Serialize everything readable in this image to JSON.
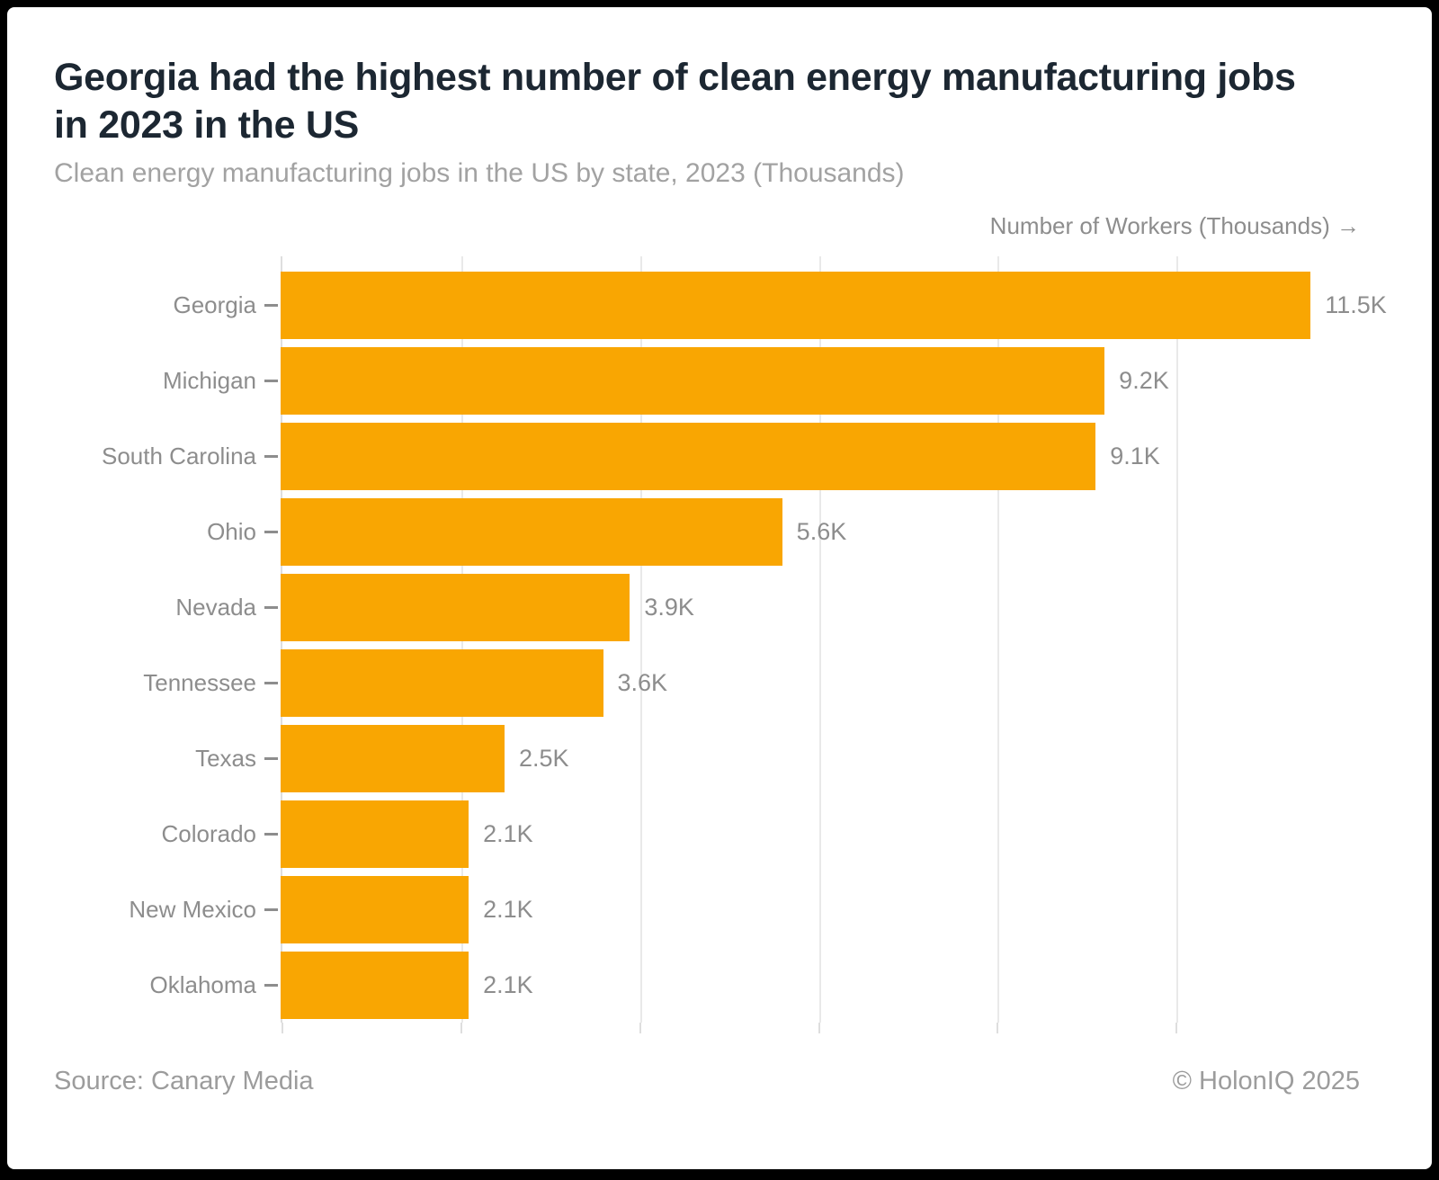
{
  "card": {
    "title": "Georgia had the highest number of clean energy manufacturing jobs in 2023 in the US",
    "subtitle": "Clean energy manufacturing jobs in the US by state, 2023 (Thousands)",
    "footer": {
      "source": "Source: Canary Media",
      "copyright": "© HolonIQ 2025"
    }
  },
  "chart_data": {
    "type": "bar",
    "orientation": "horizontal",
    "title": "Georgia had the highest number of clean energy manufacturing jobs in 2023 in the US",
    "subtitle": "Clean energy manufacturing jobs in the US by state, 2023 (Thousands)",
    "axis_title": "Number of Workers (Thousands) →",
    "categories": [
      "Georgia",
      "Michigan",
      "South Carolina",
      "Ohio",
      "Nevada",
      "Tennessee",
      "Texas",
      "Colorado",
      "New Mexico",
      "Oklahoma"
    ],
    "values": [
      11.5,
      9.2,
      9.1,
      5.6,
      3.9,
      3.6,
      2.5,
      2.1,
      2.1,
      2.1
    ],
    "value_labels": [
      "11.5K",
      "9.2K",
      "9.1K",
      "5.6K",
      "3.9K",
      "3.6K",
      "2.5K",
      "2.1K",
      "2.1K",
      "2.1K"
    ],
    "unit": "Thousands",
    "xlim": [
      0,
      12.05
    ],
    "gridlines_k": [
      2,
      4,
      6,
      8,
      10
    ],
    "ticks_k": [
      0,
      2,
      4,
      6,
      8,
      10
    ],
    "grid": "vertical",
    "legend": false,
    "bar_color": "#F9A602",
    "gridline_color": "#E9E9E9",
    "label_color": "#8D8D8D"
  }
}
